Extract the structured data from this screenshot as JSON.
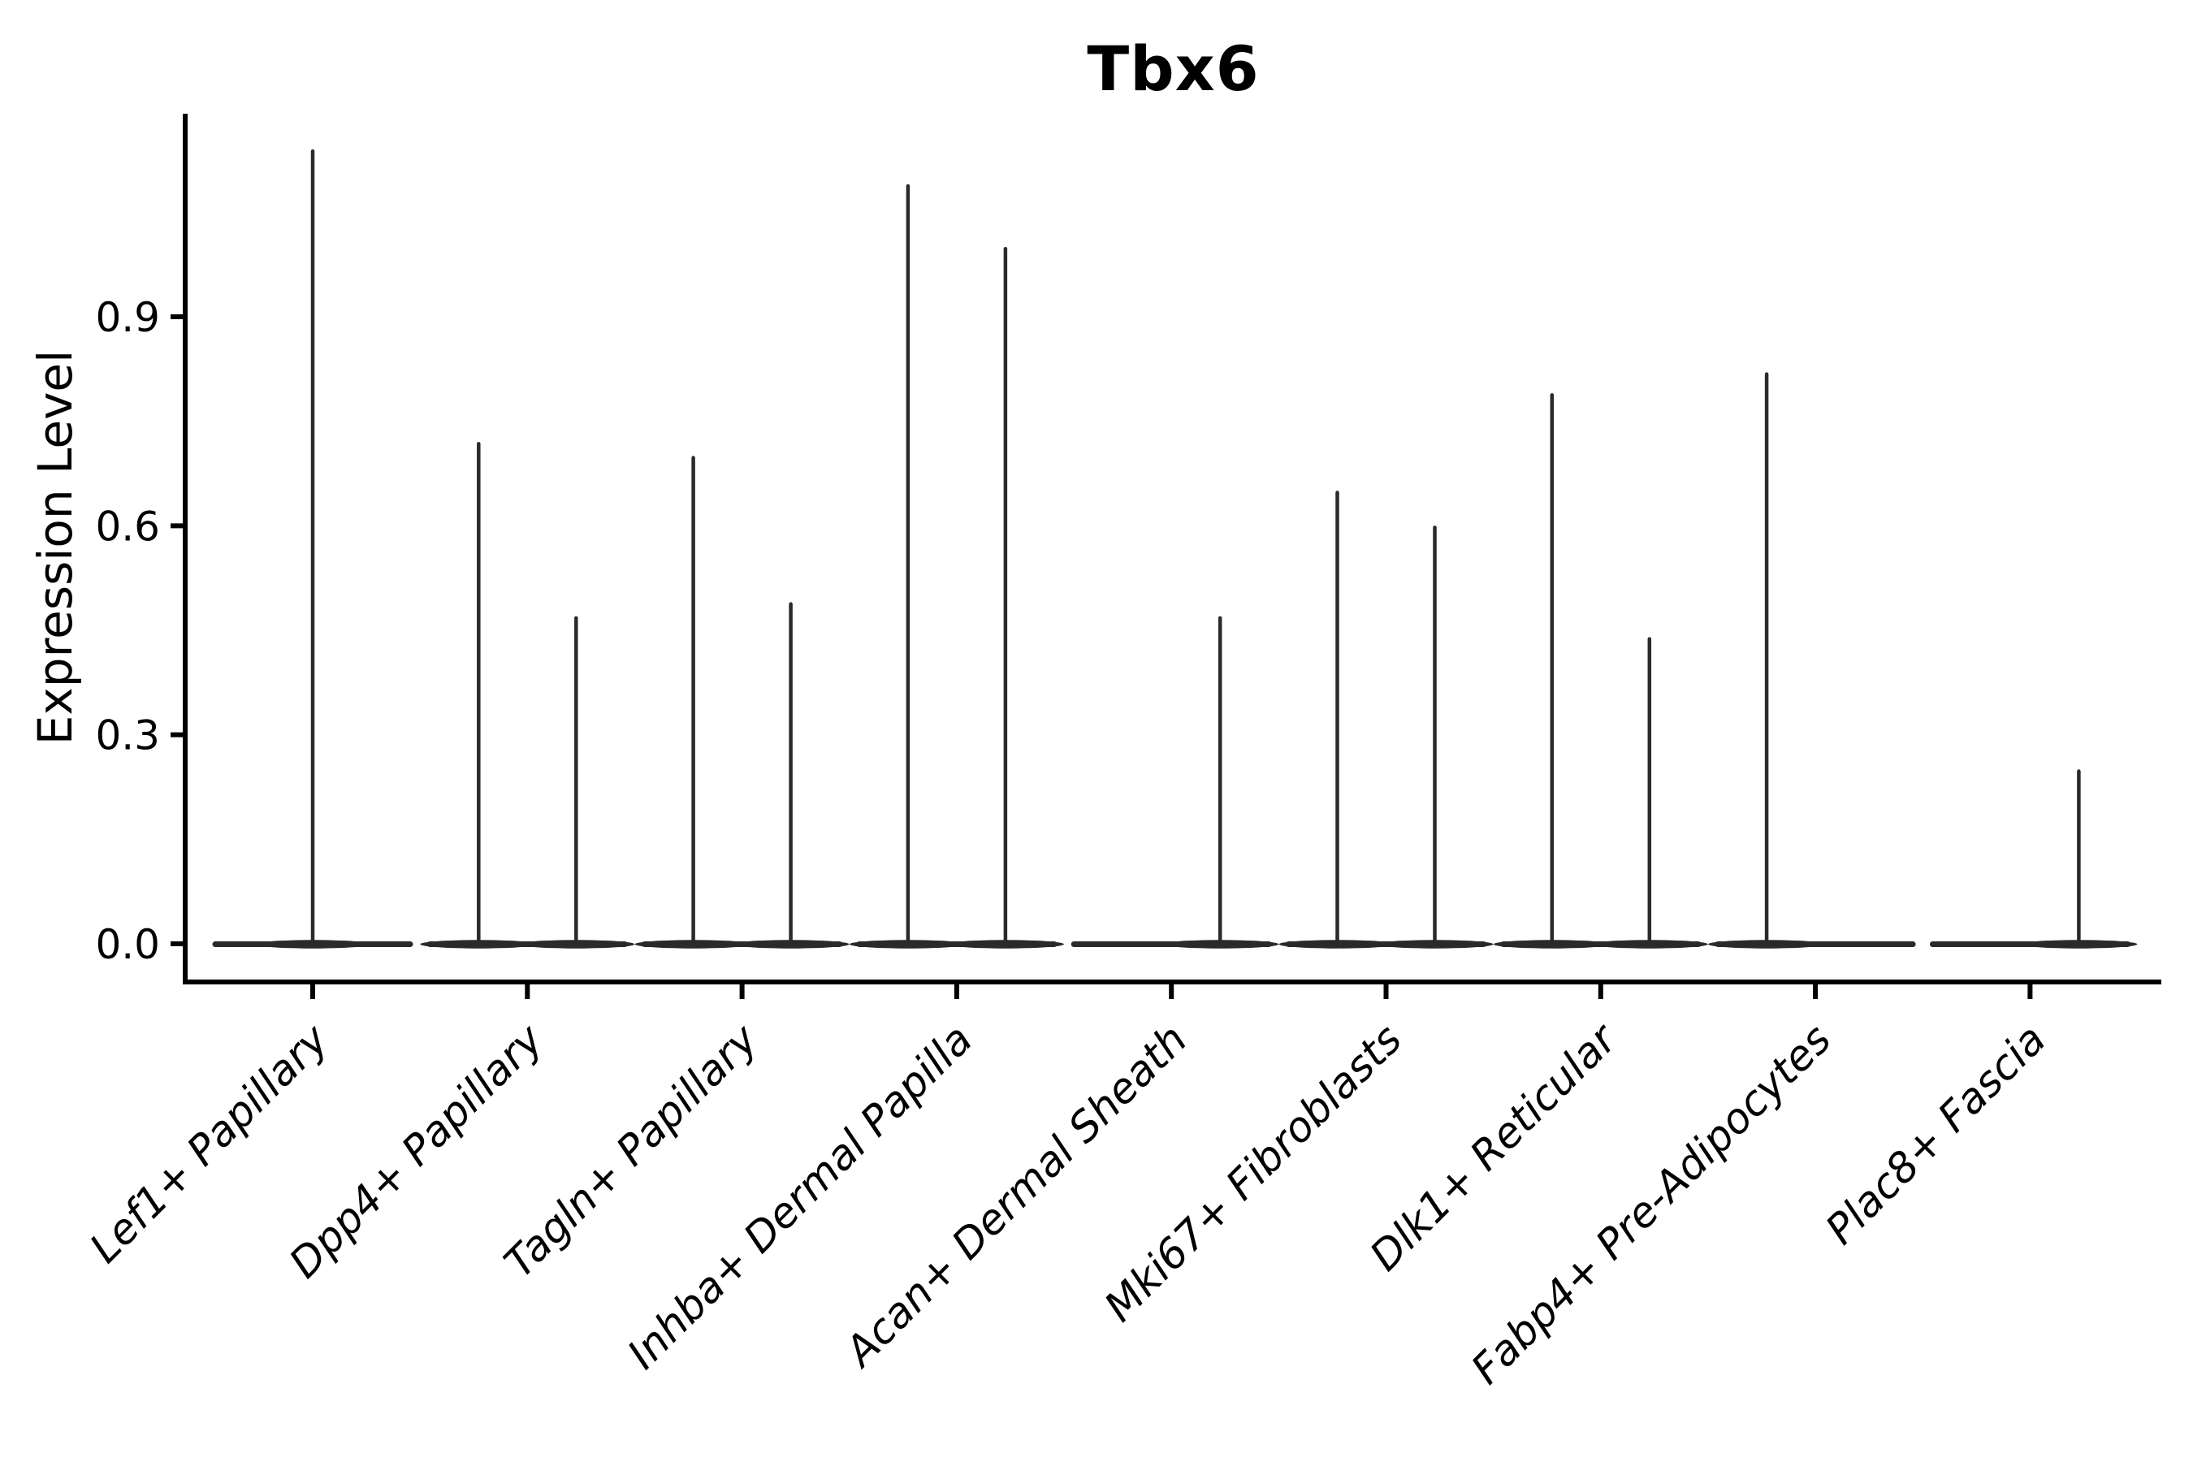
{
  "chart_data": {
    "type": "violin",
    "title": "Tbx6",
    "ylabel": "Expression Level",
    "xlabel": "",
    "ylim": [
      0.0,
      1.19
    ],
    "grid": false,
    "legend": "none",
    "baseline_value": 0.0,
    "yticks": [
      {
        "value": 0.0,
        "label": "0.0"
      },
      {
        "value": 0.3,
        "label": "0.3"
      },
      {
        "value": 0.6,
        "label": "0.6"
      },
      {
        "value": 0.9,
        "label": "0.9"
      }
    ],
    "categories": [
      {
        "label": "Lef1+ Papillary",
        "violins": [
          {
            "position": "center",
            "max": 1.14
          }
        ]
      },
      {
        "label": "Dpp4+ Papillary",
        "violins": [
          {
            "position": "left",
            "max": 0.72
          },
          {
            "position": "right",
            "max": 0.47
          }
        ]
      },
      {
        "label": "Tagln+ Papillary",
        "violins": [
          {
            "position": "left",
            "max": 0.7
          },
          {
            "position": "right",
            "max": 0.49
          }
        ]
      },
      {
        "label": "Inhba+ Dermal Papilla",
        "violins": [
          {
            "position": "left",
            "max": 1.09
          },
          {
            "position": "right",
            "max": 1.0
          }
        ]
      },
      {
        "label": "Acan+ Dermal Sheath",
        "violins": [
          {
            "position": "right",
            "max": 0.47
          }
        ]
      },
      {
        "label": "Mki67+ Fibroblasts",
        "violins": [
          {
            "position": "left",
            "max": 0.65
          },
          {
            "position": "right",
            "max": 0.6
          }
        ]
      },
      {
        "label": "Dlk1+ Reticular",
        "violins": [
          {
            "position": "left",
            "max": 0.79
          },
          {
            "position": "right",
            "max": 0.44
          }
        ]
      },
      {
        "label": "Fabp4+ Pre-Adipocytes",
        "violins": [
          {
            "position": "left",
            "max": 0.82
          }
        ]
      },
      {
        "label": "Plac8+ Fascia",
        "violins": [
          {
            "position": "right",
            "max": 0.25
          }
        ]
      }
    ],
    "colors": {
      "violin": "#2a2a2a",
      "axis": "#000000",
      "text": "#000000",
      "background": "#ffffff"
    }
  }
}
